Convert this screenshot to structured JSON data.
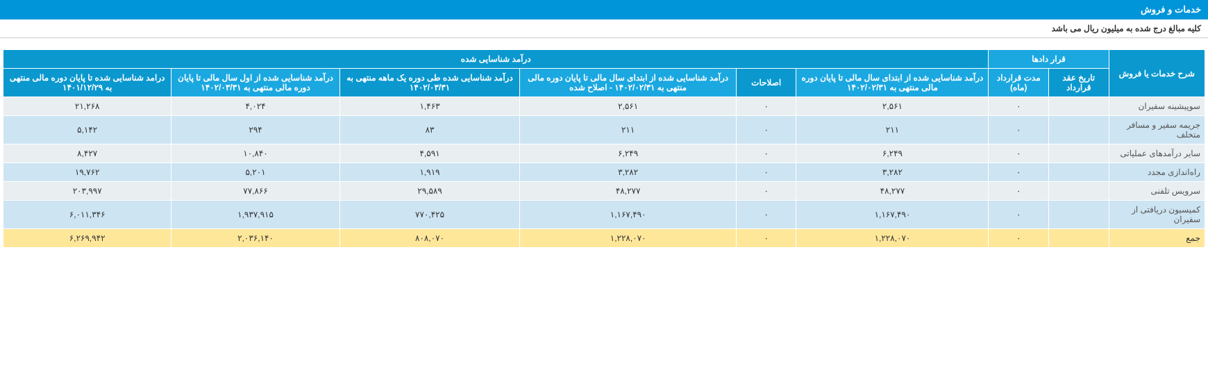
{
  "header": {
    "title": "خدمات و فروش",
    "note": "کلیه مبالغ درج شده به میلیون ریال می باشد"
  },
  "table": {
    "group_headers": {
      "desc": "شرح خدمات یا فروش",
      "contracts": "قرار دادها",
      "recognized": "درآمد شناسایی شده"
    },
    "columns": {
      "contract_date": "تاریخ عقد قرارداد",
      "contract_duration": "مدت قرارداد (ماه)",
      "rec_begin_1402_02_31": "درآمد شناسایی شده از ابتدای سال مالی تا پایان دوره مالی منتهی به ۱۴۰۲/۰۲/۳۱",
      "adjustments": "اصلاحات",
      "rec_begin_1402_02_31_adj": "درآمد شناسایی شده از ابتدای سال مالی تا پایان دوره مالی منتهی به ۱۴۰۲/۰۲/۳۱ - اصلاح شده",
      "rec_month_1402_03_31": "درآمد شناسایی شده طی دوره یک ماهه منتهی به ۱۴۰۲/۰۳/۳۱",
      "rec_begin_to_1402_03_31": "درآمد شناسایی شده از اول سال مالی تا پایان دوره مالی منتهی به ۱۴۰۲/۰۳/۳۱",
      "rec_to_1401_12_29": "درامد شناسایی شده تا پایان دوره مالی منتهی به ۱۴۰۱/۱۲/۲۹"
    },
    "rows": [
      {
        "label": "سوپیشینه سفیران",
        "contract_date": "",
        "contract_duration": "۰",
        "v1": "۲,۵۶۱",
        "adj": "۰",
        "v2": "۲,۵۶۱",
        "v3": "۱,۴۶۳",
        "v4": "۴,۰۲۴",
        "v5": "۲۱,۲۶۸"
      },
      {
        "label": "جریمه سفیر و مسافر متخلف",
        "contract_date": "",
        "contract_duration": "۰",
        "v1": "۲۱۱",
        "adj": "۰",
        "v2": "۲۱۱",
        "v3": "۸۳",
        "v4": "۲۹۴",
        "v5": "۵,۱۴۲"
      },
      {
        "label": "سایر درآمدهای عملیاتی",
        "contract_date": "",
        "contract_duration": "۰",
        "v1": "۶,۲۴۹",
        "adj": "۰",
        "v2": "۶,۲۴۹",
        "v3": "۴,۵۹۱",
        "v4": "۱۰,۸۴۰",
        "v5": "۸,۴۲۷"
      },
      {
        "label": "راه‌اندازی مجدد",
        "contract_date": "",
        "contract_duration": "۰",
        "v1": "۳,۲۸۲",
        "adj": "۰",
        "v2": "۳,۲۸۲",
        "v3": "۱,۹۱۹",
        "v4": "۵,۲۰۱",
        "v5": "۱۹,۷۶۲"
      },
      {
        "label": "سرویس تلفنی",
        "contract_date": "",
        "contract_duration": "۰",
        "v1": "۴۸,۲۷۷",
        "adj": "۰",
        "v2": "۴۸,۲۷۷",
        "v3": "۲۹,۵۸۹",
        "v4": "۷۷,۸۶۶",
        "v5": "۲۰۳,۹۹۷"
      },
      {
        "label": "کمیسیون دریافتی از سفیران",
        "contract_date": "",
        "contract_duration": "۰",
        "v1": "۱,۱۶۷,۴۹۰",
        "adj": "۰",
        "v2": "۱,۱۶۷,۴۹۰",
        "v3": "۷۷۰,۴۲۵",
        "v4": "۱,۹۳۷,۹۱۵",
        "v5": "۶,۰۱۱,۳۴۶"
      }
    ],
    "total": {
      "label": "جمع",
      "contract_date": "",
      "contract_duration": "۰",
      "v1": "۱,۲۲۸,۰۷۰",
      "adj": "۰",
      "v2": "۱,۲۲۸,۰۷۰",
      "v3": "۸۰۸,۰۷۰",
      "v4": "۲,۰۳۶,۱۴۰",
      "v5": "۶,۲۶۹,۹۴۲"
    }
  },
  "colors": {
    "header_bg": "#0095d9",
    "th_bg": "#1ba8e1",
    "th_bg_alt": "#0a98cf",
    "row_odd": "#e9eef1",
    "row_even": "#cde4f2",
    "total_bg": "#ffe79a"
  }
}
